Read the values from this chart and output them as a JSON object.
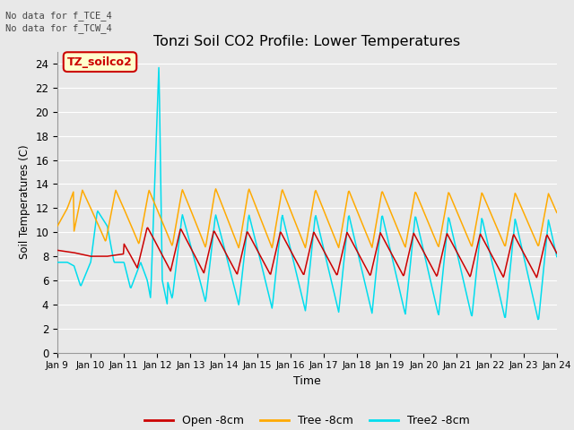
{
  "title": "Tonzi Soil CO2 Profile: Lower Temperatures",
  "xlabel": "Time",
  "ylabel": "Soil Temperatures (C)",
  "annotation_line1": "No data for f_TCE_4",
  "annotation_line2": "No data for f_TCW_4",
  "inner_legend_text": "TZ_soilco2",
  "ylim": [
    0,
    25
  ],
  "yticks": [
    0,
    2,
    4,
    6,
    8,
    10,
    12,
    14,
    16,
    18,
    20,
    22,
    24
  ],
  "xtick_labels": [
    "Jan 9",
    "Jan 10",
    "Jan 11",
    "Jan 12",
    "Jan 13",
    "Jan 14",
    "Jan 15",
    "Jan 16",
    "Jan 17",
    "Jan 18",
    "Jan 19",
    "Jan 20",
    "Jan 21",
    "Jan 22",
    "Jan 23",
    "Jan 24"
  ],
  "legend_labels": [
    "Open -8cm",
    "Tree -8cm",
    "Tree2 -8cm"
  ],
  "open_color": "#cc0000",
  "tree_color": "#ffaa00",
  "tree2_color": "#00ddee",
  "bg_color": "#e8e8e8",
  "grid_color": "#ffffff",
  "fig_bg": "#e8e8e8",
  "annotation_color": "#444444",
  "inner_legend_facecolor": "#ffffcc",
  "inner_legend_edgecolor": "#cc0000",
  "inner_legend_textcolor": "#cc0000"
}
